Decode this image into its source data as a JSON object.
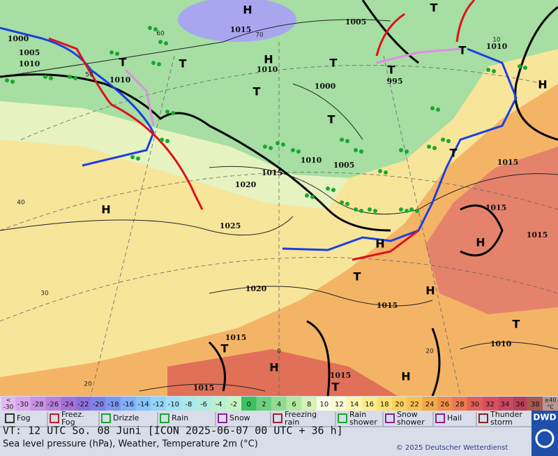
{
  "map": {
    "pressure_labels": [
      "1015",
      "1005",
      "1000",
      "1005",
      "1010",
      "1010",
      "1010",
      "1000",
      "995",
      "1010",
      "1015",
      "1010",
      "1005",
      "1020",
      "1025",
      "1015",
      "1015",
      "1015",
      "1020",
      "1015",
      "1015",
      "1010",
      "1015",
      "1015"
    ],
    "pressure_centers": [
      "H",
      "T",
      "H",
      "T",
      "T",
      "T",
      "T",
      "T",
      "T",
      "H",
      "T",
      "H",
      "T",
      "H",
      "H",
      "T",
      "H",
      "T",
      "T",
      "H",
      "H",
      "T"
    ],
    "graticule_labels": [
      "60",
      "70",
      "50",
      "40",
      "30",
      "20",
      "20",
      "0",
      "10"
    ]
  },
  "scale": {
    "low": [
      "<",
      "-30"
    ],
    "high": [
      "≥40",
      "°C"
    ],
    "cells": [
      {
        "label": "-30",
        "color": "#d9a6ea"
      },
      {
        "label": "-28",
        "color": "#cb92e2"
      },
      {
        "label": "-26",
        "color": "#bb80da"
      },
      {
        "label": "-24",
        "color": "#a672d8"
      },
      {
        "label": "-22",
        "color": "#8e70dc"
      },
      {
        "label": "-20",
        "color": "#7f83e8"
      },
      {
        "label": "-18",
        "color": "#7b98f0"
      },
      {
        "label": "-16",
        "color": "#80b0f5"
      },
      {
        "label": "-14",
        "color": "#87c4f8"
      },
      {
        "label": "-12",
        "color": "#93d5f8"
      },
      {
        "label": "-10",
        "color": "#a2e0f4"
      },
      {
        "label": "-8",
        "color": "#aae8ea"
      },
      {
        "label": "-6",
        "color": "#b2ecde"
      },
      {
        "label": "-4",
        "color": "#baf0d0"
      },
      {
        "label": "-2",
        "color": "#c4f4c2"
      },
      {
        "label": "0",
        "color": "#3cc060"
      },
      {
        "label": "2",
        "color": "#6bd080"
      },
      {
        "label": "4",
        "color": "#92dc90"
      },
      {
        "label": "6",
        "color": "#b5e8a0"
      },
      {
        "label": "8",
        "color": "#d5f2b5"
      },
      {
        "label": "10",
        "color": "#fbfde8"
      },
      {
        "label": "12",
        "color": "#fdfbd0"
      },
      {
        "label": "14",
        "color": "#fdf5b0"
      },
      {
        "label": "16",
        "color": "#fdeb90"
      },
      {
        "label": "18",
        "color": "#fce070"
      },
      {
        "label": "20",
        "color": "#fbd060"
      },
      {
        "label": "22",
        "color": "#f8c050"
      },
      {
        "label": "24",
        "color": "#f5a848"
      },
      {
        "label": "26",
        "color": "#f09048"
      },
      {
        "label": "28",
        "color": "#ea7a50"
      },
      {
        "label": "30",
        "color": "#e26058"
      },
      {
        "label": "32",
        "color": "#d85060"
      },
      {
        "label": "34",
        "color": "#c84860"
      },
      {
        "label": "36",
        "color": "#b84058"
      },
      {
        "label": "38",
        "color": "#a85850"
      }
    ]
  },
  "weather_legend": [
    [
      "Fog"
    ],
    [
      "Freez.",
      "Fog"
    ],
    [
      "Drizzle"
    ],
    [
      "Rain"
    ],
    [
      "Snow"
    ],
    [
      "Freezing",
      "rain"
    ],
    [
      "Rain",
      "shower"
    ],
    [
      "Snow",
      "shower"
    ],
    [
      "Hail"
    ],
    [
      "Thunder",
      "storm"
    ]
  ],
  "footer": {
    "valid_time": "VT: 12 UTC So.  08 Juni [ICON 2025-06-07  00 UTC + 36 h]",
    "description": "Sea level pressure (hPa), Weather, Temperature 2m (°C)",
    "copyright": "© 2025 Deutscher Wetterdienst",
    "logo": "DWD"
  }
}
